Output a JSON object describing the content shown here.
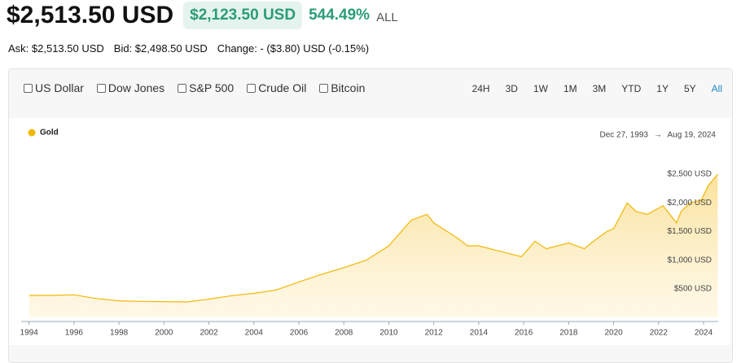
{
  "header": {
    "price": "$2,513.50 USD",
    "change_amount": "$2,123.50 USD",
    "change_percent": "544.49%",
    "period": "ALL",
    "ask": "Ask: $2,513.50 USD",
    "bid": "Bid: $2,498.50 USD",
    "change": "Change: - ($3.80) USD (-0.15%)"
  },
  "toolbar": {
    "compare": [
      "US Dollar",
      "Dow Jones",
      "S&P 500",
      "Crude Oil",
      "Bitcoin"
    ],
    "ranges": [
      "24H",
      "3D",
      "1W",
      "1M",
      "3M",
      "YTD",
      "1Y",
      "5Y",
      "All"
    ],
    "active_range": "All"
  },
  "chart_data": {
    "type": "area",
    "date_from": "Dec 27, 1993",
    "range_separator": "→",
    "date_to": "Aug 19, 2024",
    "x": [
      1994,
      1995,
      1996,
      1997,
      1998,
      1999,
      2000,
      2001,
      2002,
      2003,
      2004,
      2005,
      2006,
      2007,
      2008,
      2009,
      2010,
      2011,
      2011.7,
      2012,
      2013,
      2013.5,
      2014,
      2015,
      2015.9,
      2016.5,
      2017,
      2018,
      2018.7,
      2019,
      2019.7,
      2020,
      2020.6,
      2021,
      2021.5,
      2022.2,
      2022.8,
      2023,
      2023.4,
      2023.9,
      2024.2,
      2024.63
    ],
    "series": [
      {
        "name": "Gold",
        "color": "#f2b705",
        "values": [
          383,
          385,
          395,
          330,
          290,
          280,
          275,
          270,
          320,
          380,
          420,
          480,
          620,
          750,
          870,
          1000,
          1250,
          1700,
          1800,
          1650,
          1400,
          1250,
          1250,
          1150,
          1060,
          1330,
          1200,
          1300,
          1200,
          1300,
          1500,
          1550,
          2000,
          1850,
          1800,
          1950,
          1650,
          1850,
          2000,
          2050,
          2300,
          2500
        ]
      }
    ],
    "xlim": [
      1993.65,
      2024.65
    ],
    "ylim": [
      0,
      2700
    ],
    "xticks": [
      1994,
      1996,
      1998,
      2000,
      2002,
      2004,
      2006,
      2008,
      2010,
      2012,
      2014,
      2016,
      2018,
      2020,
      2022,
      2024
    ],
    "yticks": [
      {
        "value": 500,
        "label": "$500 USD"
      },
      {
        "value": 1000,
        "label": "$1,000 USD"
      },
      {
        "value": 1500,
        "label": "$1,500 USD"
      },
      {
        "value": 2000,
        "label": "$2,000 USD"
      },
      {
        "value": 2500,
        "label": "$2,500 USD"
      }
    ]
  }
}
